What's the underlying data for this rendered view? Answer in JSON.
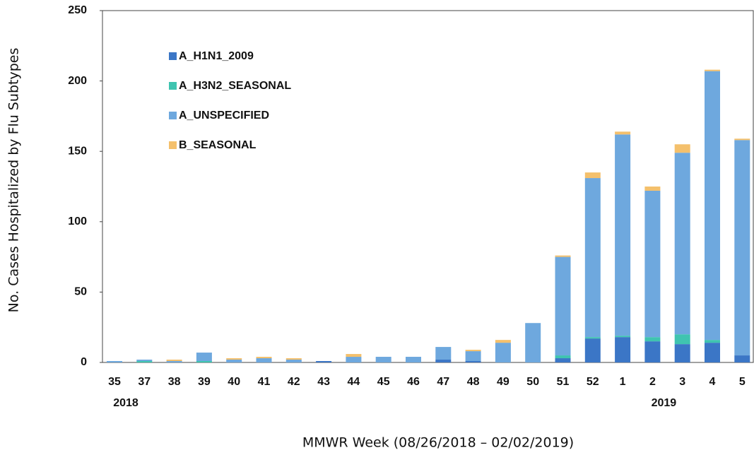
{
  "chart_data": {
    "type": "stacked_bar",
    "y_label": "No. Cases Hospitalized by Flu Subtypes",
    "x_label": "MMWR Week (08/26/2018 – 02/02/2019)",
    "categories": [
      "35",
      "37",
      "38",
      "39",
      "40",
      "41",
      "42",
      "43",
      "44",
      "45",
      "46",
      "47",
      "48",
      "49",
      "50",
      "51",
      "52",
      "1",
      "2",
      "3",
      "4",
      "5"
    ],
    "years": [
      "2018",
      null,
      null,
      null,
      null,
      null,
      null,
      null,
      null,
      null,
      null,
      null,
      null,
      null,
      null,
      null,
      null,
      null,
      "2019",
      null,
      null,
      null
    ],
    "series": [
      {
        "name": "A_H1N1_2009",
        "color": "#3b76c6",
        "values": [
          0,
          0,
          0,
          0,
          0,
          0,
          0,
          1,
          0,
          0,
          0,
          2,
          1,
          0,
          0,
          3,
          17,
          18,
          15,
          13,
          14,
          5
        ]
      },
      {
        "name": "A_H3N2_SEASONAL",
        "color": "#3fc4b0",
        "values": [
          0,
          1,
          0,
          1,
          0,
          0,
          0,
          0,
          0,
          0,
          0,
          0,
          0,
          0,
          0,
          2,
          1,
          1,
          3,
          7,
          2,
          0
        ]
      },
      {
        "name": "A_UNSPECIFIED",
        "color": "#6ea8de",
        "values": [
          1,
          1,
          1,
          6,
          2,
          3,
          2,
          0,
          4,
          4,
          4,
          9,
          7,
          14,
          28,
          70,
          113,
          143,
          104,
          129,
          191,
          153
        ]
      },
      {
        "name": "B_SEASONAL",
        "color": "#f4c06c",
        "values": [
          0,
          0,
          1,
          0,
          1,
          1,
          1,
          0,
          2,
          0,
          0,
          0,
          1,
          2,
          0,
          1,
          4,
          2,
          3,
          6,
          1,
          1
        ]
      }
    ],
    "ylim": [
      0,
      250
    ],
    "yticks": [
      0,
      50,
      100,
      150,
      200,
      250
    ],
    "grid": false
  }
}
